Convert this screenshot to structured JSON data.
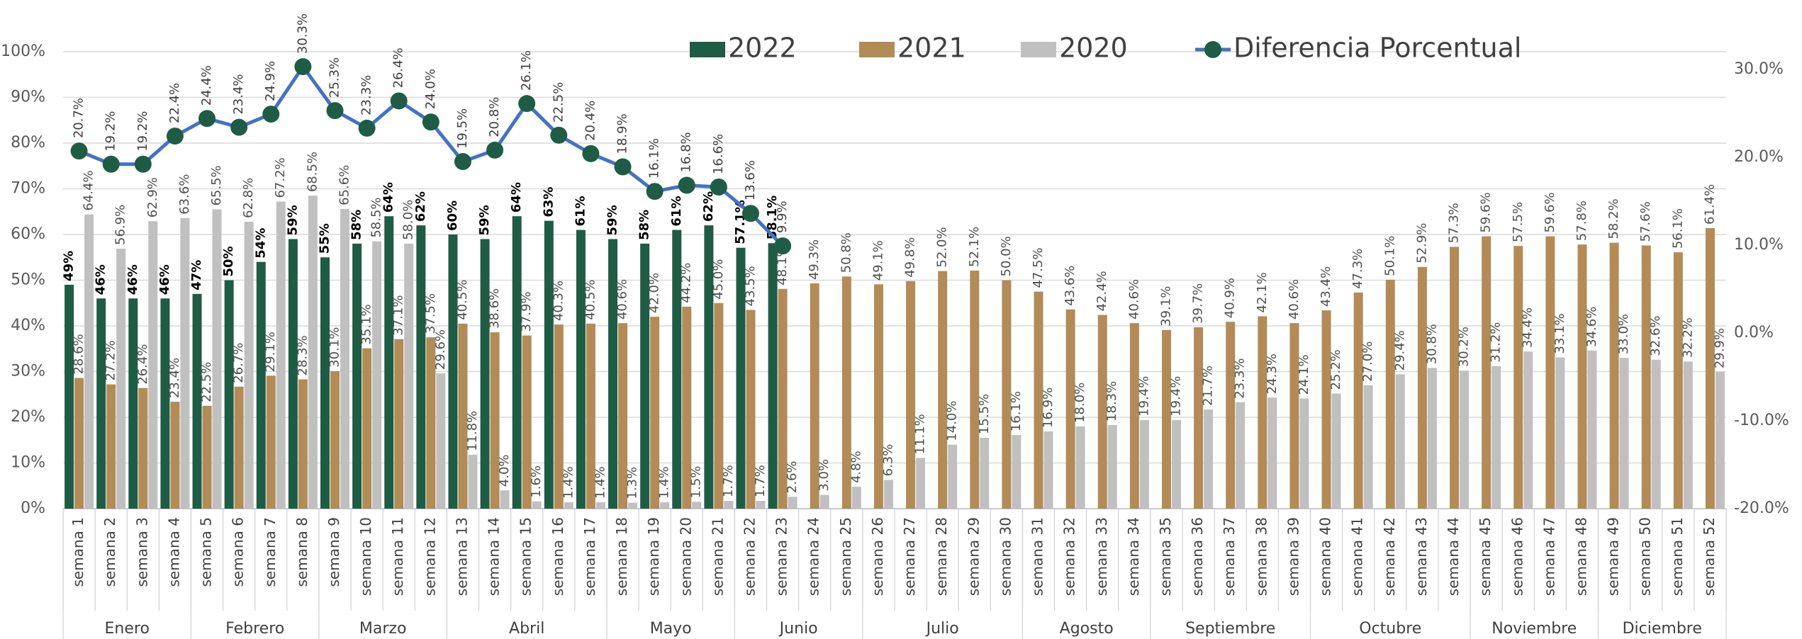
{
  "chart_data": {
    "type": "bar",
    "categories": [
      "semana 1",
      "semana 2",
      "semana 3",
      "semana 4",
      "semana 5",
      "semana 6",
      "semana 7",
      "semana 8",
      "semana 9",
      "semana 10",
      "semana 11",
      "semana 12",
      "semana 13",
      "semana 14",
      "semana 15",
      "semana 16",
      "semana 17",
      "semana 18",
      "semana 19",
      "semana 20",
      "semana 21",
      "semana 22",
      "semana 23",
      "semana 24",
      "semana 25",
      "semana 26",
      "semana 27",
      "semana 28",
      "semana 29",
      "semana 30",
      "semana 31",
      "semana 32",
      "semana 33",
      "semana 34",
      "semana 35",
      "semana 36",
      "semana 37",
      "semana 38",
      "semana 39",
      "semana 40",
      "semana 41",
      "semana 42",
      "semana 43",
      "semana 44",
      "semana 45",
      "semana 46",
      "semana 47",
      "semana 48",
      "semana 49",
      "semana 50",
      "semana 51",
      "semana 52"
    ],
    "groups": [
      {
        "label": "Enero",
        "size": 4
      },
      {
        "label": "Febrero",
        "size": 4
      },
      {
        "label": "Marzo",
        "size": 4
      },
      {
        "label": "Abril",
        "size": 5
      },
      {
        "label": "Mayo",
        "size": 4
      },
      {
        "label": "Junio",
        "size": 4
      },
      {
        "label": "Julio",
        "size": 5
      },
      {
        "label": "Agosto",
        "size": 4
      },
      {
        "label": "Septiembre",
        "size": 5
      },
      {
        "label": "Octubre",
        "size": 5
      },
      {
        "label": "Noviembre",
        "size": 4
      },
      {
        "label": "Diciembre",
        "size": 4
      }
    ],
    "series": [
      {
        "name": "2022",
        "color": "#1f5c45",
        "values": [
          49,
          46,
          46,
          46,
          47,
          50,
          54,
          59,
          55,
          58,
          64,
          62,
          60,
          59,
          64,
          63,
          61,
          59,
          58,
          61,
          62,
          57.1,
          58.1,
          null,
          null,
          null,
          null,
          null,
          null,
          null,
          null,
          null,
          null,
          null,
          null,
          null,
          null,
          null,
          null,
          null,
          null,
          null,
          null,
          null,
          null,
          null,
          null,
          null,
          null,
          null,
          null,
          null
        ],
        "value_labels": [
          "49%",
          "46%",
          "46%",
          "46%",
          "47%",
          "50%",
          "54%",
          "59%",
          "55%",
          "58%",
          "64%",
          "62%",
          "60%",
          "59%",
          "64%",
          "63%",
          "61%",
          "59%",
          "58%",
          "61%",
          "62%",
          "57.1%",
          "58.1%",
          null,
          null,
          null,
          null,
          null,
          null,
          null,
          null,
          null,
          null,
          null,
          null,
          null,
          null,
          null,
          null,
          null,
          null,
          null,
          null,
          null,
          null,
          null,
          null,
          null,
          null,
          null,
          null,
          null
        ]
      },
      {
        "name": "2021",
        "color": "#b38b57",
        "values": [
          28.6,
          27.2,
          26.4,
          23.4,
          22.5,
          26.7,
          29.1,
          28.3,
          30.1,
          35.1,
          37.1,
          37.5,
          40.5,
          38.6,
          37.9,
          40.3,
          40.5,
          40.6,
          42,
          44.2,
          45,
          43.5,
          48.1,
          49.3,
          50.8,
          49.1,
          49.8,
          52,
          52.1,
          50,
          47.5,
          43.6,
          42.4,
          40.6,
          39.1,
          39.7,
          40.9,
          42.1,
          40.6,
          43.4,
          47.3,
          50.1,
          52.9,
          57.3,
          59.6,
          57.5,
          59.6,
          57.8,
          58.2,
          57.6,
          56.1,
          61.4
        ],
        "value_labels": [
          "28.6%",
          "27.2%",
          "26.4%",
          "23.4%",
          "22.5%",
          "26.7%",
          "29.1%",
          "28.3%",
          "30.1%",
          "35.1%",
          "37.1%",
          "37.5%",
          "40.5%",
          "38.6%",
          "37.9%",
          "40.3%",
          "40.5%",
          "40.6%",
          "42.0%",
          "44.2%",
          "45.0%",
          "43.5%",
          "48.1%",
          "49.3%",
          "50.8%",
          "49.1%",
          "49.8%",
          "52.0%",
          "52.1%",
          "50.0%",
          "47.5%",
          "43.6%",
          "42.4%",
          "40.6%",
          "39.1%",
          "39.7%",
          "40.9%",
          "42.1%",
          "40.6%",
          "43.4%",
          "47.3%",
          "50.1%",
          "52.9%",
          "57.3%",
          "59.6%",
          "57.5%",
          "59.6%",
          "57.8%",
          "58.2%",
          "57.6%",
          "56.1%",
          "61.4%"
        ]
      },
      {
        "name": "2020",
        "color": "#c0c0c0",
        "values": [
          64.4,
          56.9,
          62.9,
          63.6,
          65.5,
          62.8,
          67.2,
          68.5,
          65.6,
          58.5,
          58,
          29.6,
          11.8,
          4,
          1.6,
          1.4,
          1.4,
          1.3,
          1.4,
          1.5,
          1.7,
          1.7,
          2.6,
          3,
          4.8,
          6.3,
          11.1,
          14,
          15.5,
          16.1,
          16.9,
          18,
          18.3,
          19.4,
          19.4,
          21.7,
          23.3,
          24.3,
          24.1,
          25.2,
          27,
          29.4,
          30.8,
          30.2,
          31.2,
          34.4,
          33.1,
          34.6,
          33,
          32.6,
          32.2,
          29.9
        ],
        "value_labels": [
          "64.4%",
          "56.9%",
          "62.9%",
          "63.6%",
          "65.5%",
          "62.8%",
          "67.2%",
          "68.5%",
          "65.6%",
          "58.5%",
          "58.0%",
          "29.6%",
          "11.8%",
          "4.0%",
          "1.6%",
          "1.4%",
          "1.4%",
          "1.3%",
          "1.4%",
          "1.5%",
          "1.7%",
          "1.7%",
          "2.6%",
          "3.0%",
          "4.8%",
          "6.3%",
          "11.1%",
          "14.0%",
          "15.5%",
          "16.1%",
          "16.9%",
          "18.0%",
          "18.3%",
          "19.4%",
          "19.4%",
          "21.7%",
          "23.3%",
          "24.3%",
          "24.1%",
          "25.2%",
          "27.0%",
          "29.4%",
          "30.8%",
          "30.2%",
          "31.2%",
          "34.4%",
          "33.1%",
          "34.6%",
          "33.0%",
          "32.6%",
          "32.2%",
          "29.9%"
        ]
      },
      {
        "name": "Diferencia Porcentual",
        "type": "line",
        "axis": "y2",
        "color": "#4472c4",
        "marker_color": "#1f5c45",
        "values": [
          20.7,
          19.2,
          19.2,
          22.4,
          24.4,
          23.4,
          24.9,
          30.3,
          25.3,
          23.3,
          26.4,
          24,
          19.5,
          20.8,
          26.1,
          22.5,
          20.4,
          18.9,
          16.1,
          16.8,
          16.6,
          13.6,
          9.9,
          null,
          null,
          null,
          null,
          null,
          null,
          null,
          null,
          null,
          null,
          null,
          null,
          null,
          null,
          null,
          null,
          null,
          null,
          null,
          null,
          null,
          null,
          null,
          null,
          null,
          null,
          null,
          null,
          null
        ],
        "value_labels": [
          "20.7%",
          "19.2%",
          "19.2%",
          "22.4%",
          "24.4%",
          "23.4%",
          "24.9%",
          "30.3%",
          "25.3%",
          "23.3%",
          "26.4%",
          "24.0%",
          "19.5%",
          "20.8%",
          "26.1%",
          "22.5%",
          "20.4%",
          "18.9%",
          "16.1%",
          "16.8%",
          "16.6%",
          "13.6%",
          "9.9%",
          null,
          null,
          null,
          null,
          null,
          null,
          null,
          null,
          null,
          null,
          null,
          null,
          null,
          null,
          null,
          null,
          null,
          null,
          null,
          null,
          null,
          null,
          null,
          null,
          null,
          null,
          null,
          null,
          null
        ]
      }
    ],
    "ylim": [
      0,
      100
    ],
    "yticks": [
      {
        "value": 0,
        "label": "0%"
      },
      {
        "value": 10,
        "label": "10%"
      },
      {
        "value": 20,
        "label": "20%"
      },
      {
        "value": 30,
        "label": "30%"
      },
      {
        "value": 40,
        "label": "40%"
      },
      {
        "value": 50,
        "label": "50%"
      },
      {
        "value": 60,
        "label": "60%"
      },
      {
        "value": 70,
        "label": "70%"
      },
      {
        "value": 80,
        "label": "80%"
      },
      {
        "value": 90,
        "label": "90%"
      },
      {
        "value": 100,
        "label": "100%"
      }
    ],
    "y2lim": [
      -20,
      32
    ],
    "y2ticks": [
      {
        "value": -20,
        "label": "-20.0%"
      },
      {
        "value": -10,
        "label": "-10.0%"
      },
      {
        "value": 0,
        "label": "0.0%"
      },
      {
        "value": 10,
        "label": "10.0%"
      },
      {
        "value": 20,
        "label": "20.0%"
      },
      {
        "value": 30,
        "label": "30.0%"
      }
    ],
    "grid": true,
    "legend": "top"
  }
}
